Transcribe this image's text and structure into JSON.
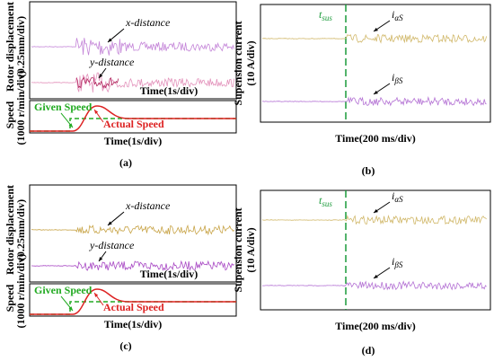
{
  "panels": [
    {
      "caption": "(a)",
      "ylabel": [
        "Rotor displacement",
        "(0.25mm/div)"
      ],
      "ylabel2": [
        "Speed",
        "(1000 r/min/div)"
      ],
      "traces": [
        "x-distance",
        "y-distance"
      ],
      "time": [
        "Time(1s/div)",
        "Time(1s/div)"
      ],
      "speed": [
        "Given Speed",
        "Actual Speed"
      ]
    },
    {
      "caption": "(b)",
      "ylabel": [
        "Supension current",
        "(10 A/div)"
      ],
      "marker": {
        "main": "t",
        "sub": "sus"
      },
      "traces": [
        {
          "main": "i",
          "sub": "αS"
        },
        {
          "main": "i",
          "sub": "βS"
        }
      ],
      "time": [
        "Time(200 ms/div)"
      ]
    },
    {
      "caption": "(c)",
      "ylabel": [
        "Rotor displacement",
        "(0.25mm/div)"
      ],
      "ylabel2": [
        "Speed",
        "(1000 r/min/div)"
      ],
      "traces": [
        "x-distance",
        "y-distance"
      ],
      "time": [
        "Time(1s/div)",
        "Time(1s/div)"
      ],
      "speed": [
        "Given Speed",
        "Actual Speed"
      ]
    },
    {
      "caption": "(d)",
      "ylabel": [
        "Supension current",
        "(10 A/div)"
      ],
      "marker": {
        "main": "t",
        "sub": "sus"
      },
      "traces": [
        {
          "main": "i",
          "sub": "αS"
        },
        {
          "main": "i",
          "sub": "βS"
        }
      ],
      "time": [
        "Time(200 ms/div)"
      ]
    }
  ]
}
